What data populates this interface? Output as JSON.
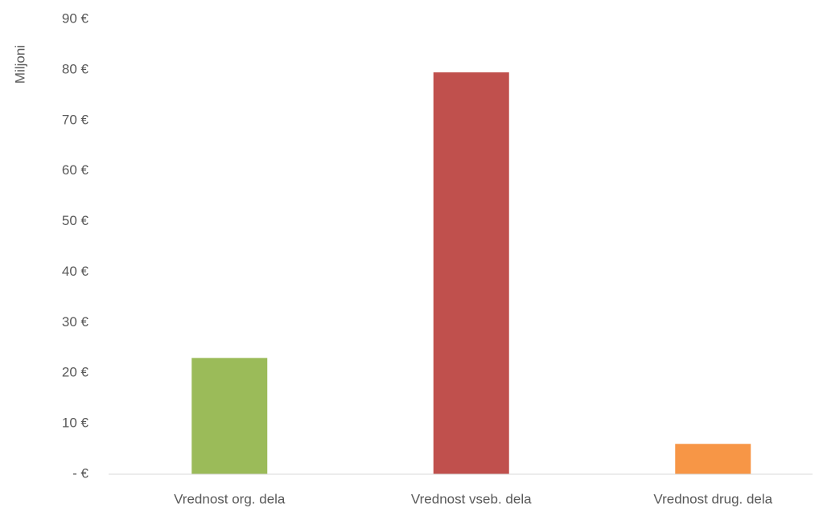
{
  "chart_data": {
    "type": "bar",
    "y_label": "Miljoni",
    "categories": [
      "Vrednost org. dela",
      "Vrednost vseb. dela",
      "Vrednost drug. dela"
    ],
    "values": [
      23,
      79.5,
      6
    ],
    "colors": [
      "#9bbb59",
      "#c0504d",
      "#f79646"
    ],
    "ylim": [
      0,
      90
    ],
    "yticks": [
      {
        "value": 0,
        "label": "- €"
      },
      {
        "value": 10,
        "label": "10 €"
      },
      {
        "value": 20,
        "label": "20 €"
      },
      {
        "value": 30,
        "label": "30 €"
      },
      {
        "value": 40,
        "label": "40 €"
      },
      {
        "value": 50,
        "label": "50 €"
      },
      {
        "value": 60,
        "label": "60 €"
      },
      {
        "value": 70,
        "label": "70 €"
      },
      {
        "value": 80,
        "label": "80 €"
      },
      {
        "value": 90,
        "label": "90 €"
      }
    ],
    "grid": false
  }
}
